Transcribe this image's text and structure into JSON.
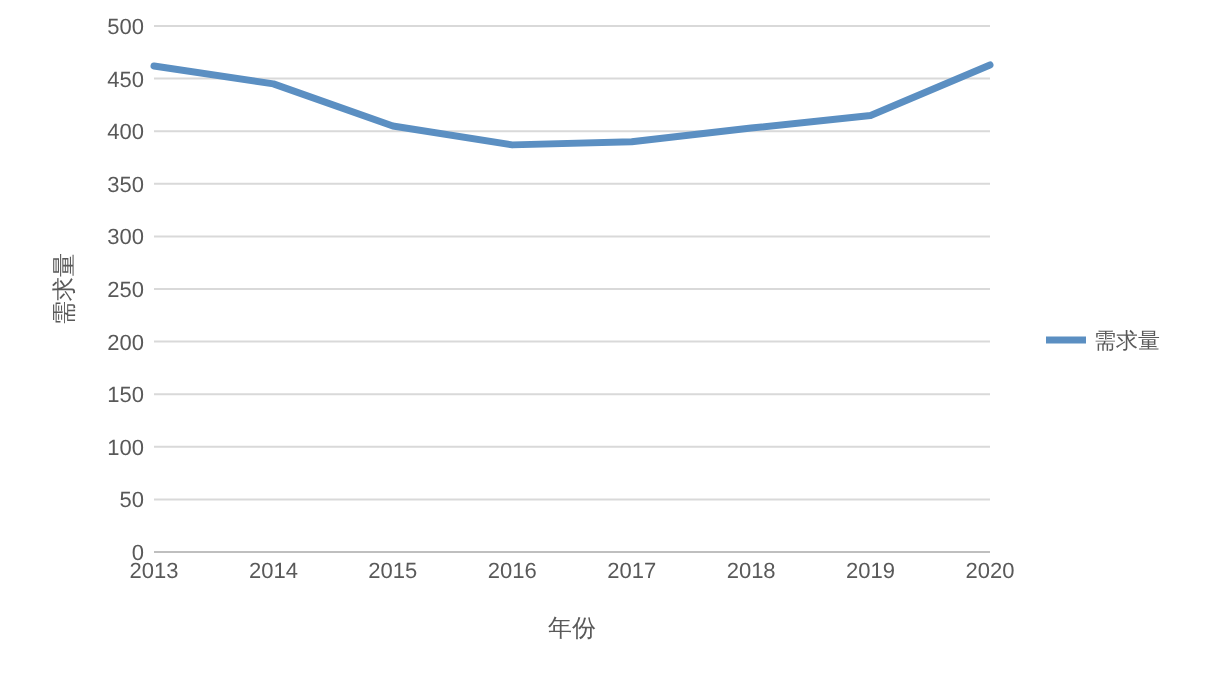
{
  "chart_data": {
    "type": "line",
    "xlabel": "年份",
    "ylabel": "需求量",
    "categories": [
      "2013",
      "2014",
      "2015",
      "2016",
      "2017",
      "2018",
      "2019",
      "2020"
    ],
    "series": [
      {
        "name": "需求量",
        "color": "#5b8fc2",
        "values": [
          462,
          445,
          405,
          387,
          390,
          403,
          415,
          463
        ]
      }
    ],
    "ylim": [
      0,
      500
    ],
    "yticks": [
      0,
      50,
      100,
      150,
      200,
      250,
      300,
      350,
      400,
      450,
      500
    ],
    "grid": "y",
    "legend": "right",
    "line_style": "solid",
    "marker": "none"
  }
}
